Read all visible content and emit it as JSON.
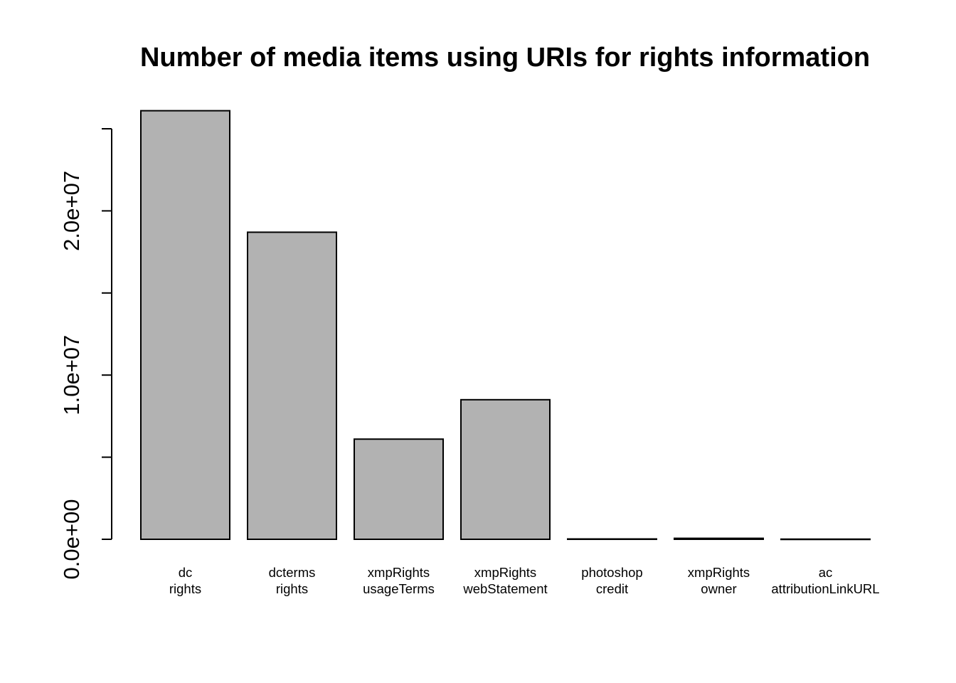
{
  "chart_data": {
    "type": "bar",
    "title": "Number of media items using URIs for rights information",
    "xlabel": "",
    "ylabel": "",
    "categories": [
      [
        "dc",
        "rights"
      ],
      [
        "dcterms",
        "rights"
      ],
      [
        "xmpRights",
        "usageTerms"
      ],
      [
        "xmpRights",
        "webStatement"
      ],
      [
        "photoshop",
        "credit"
      ],
      [
        "xmpRights",
        "owner"
      ],
      [
        "ac",
        "attributionLinkURL"
      ]
    ],
    "values": [
      26100000,
      18700000,
      6100000,
      8500000,
      20000,
      60000,
      10000
    ],
    "ylim": [
      0,
      25000000
    ],
    "yticks": [
      0,
      5000000,
      10000000,
      15000000,
      20000000,
      25000000
    ],
    "ytick_labels": [
      "0.0e+00",
      "",
      "1.0e+07",
      "",
      "2.0e+07",
      ""
    ],
    "bar_fill": "#b2b2b2",
    "grid": false,
    "legend": "none"
  }
}
